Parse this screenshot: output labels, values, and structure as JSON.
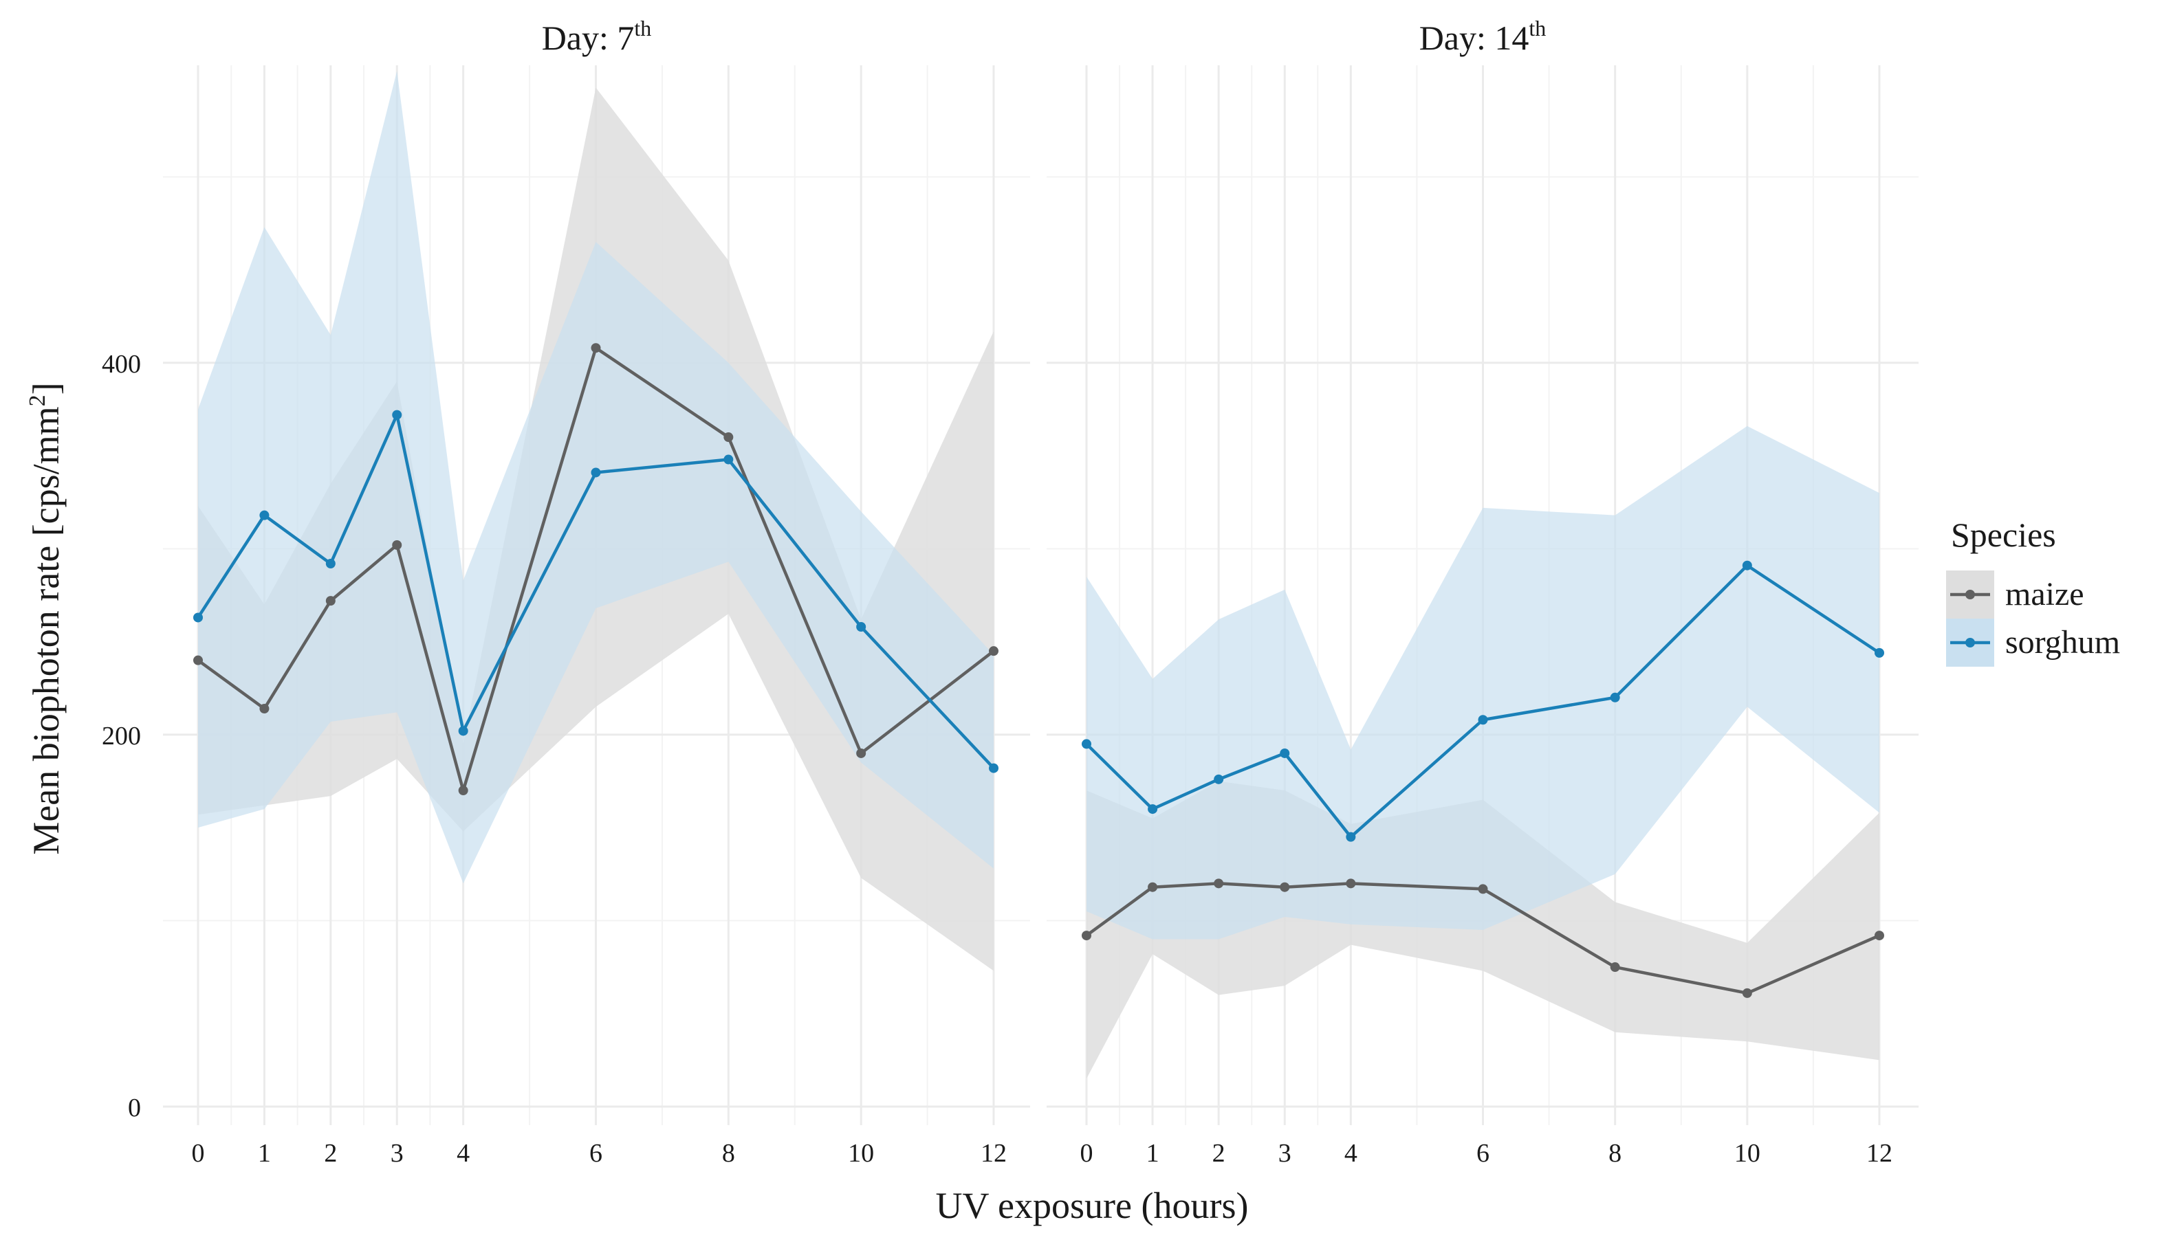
{
  "chart_data": {
    "type": "line",
    "ylabel": "Mean biophoton rate [cps/mm",
    "ylabel_sup": "2",
    "ylabel_end": "]",
    "xlabel": "UV exposure (hours)",
    "ylim": [
      -10,
      560
    ],
    "y_ticks": [
      0,
      200,
      400
    ],
    "y_tick_labels": [
      "0",
      "200",
      "400"
    ],
    "legend": {
      "title": "Species",
      "position": "right",
      "entries": [
        {
          "name": "maize",
          "color": "#606060",
          "band": "#dedede"
        },
        {
          "name": "sorghum",
          "color": "#1a80b8",
          "band": "#c9e0f0"
        }
      ]
    },
    "panels": [
      {
        "title_main": "Day: 7",
        "title_sup": "th",
        "x": [
          0,
          1,
          2,
          3,
          4,
          6,
          8,
          10,
          12
        ],
        "x_tick_labels": [
          "0",
          "1",
          "2",
          "3",
          "4",
          "6",
          "8",
          "10",
          "12"
        ],
        "series": [
          {
            "name": "maize",
            "values": [
              240,
              214,
              272,
              302,
              170,
              408,
              360,
              190,
              245
            ],
            "lower": [
              157,
              162,
              167,
              187,
              148,
              215,
              265,
              123,
              73
            ],
            "upper": [
              323,
              270,
              335,
              390,
              195,
              548,
              455,
              262,
              417
            ]
          },
          {
            "name": "sorghum",
            "values": [
              263,
              318,
              292,
              372,
              202,
              341,
              348,
              258,
              182
            ],
            "lower": [
              150,
              160,
              207,
              212,
              120,
              268,
              293,
              185,
              128
            ],
            "upper": [
              375,
              473,
              415,
              557,
              283,
              465,
              400,
              320,
              243
            ]
          }
        ]
      },
      {
        "title_main": "Day: 14",
        "title_sup": "th",
        "x": [
          0,
          1,
          2,
          3,
          4,
          6,
          8,
          10,
          12
        ],
        "x_tick_labels": [
          "0",
          "1",
          "2",
          "3",
          "4",
          "6",
          "8",
          "10",
          "12"
        ],
        "series": [
          {
            "name": "maize",
            "values": [
              92,
              118,
              120,
              118,
              120,
              117,
              75,
              61,
              92
            ],
            "lower": [
              15,
              82,
              60,
              65,
              87,
              73,
              40,
              35,
              25
            ],
            "upper": [
              170,
              155,
              175,
              170,
              152,
              165,
              110,
              88,
              158
            ]
          },
          {
            "name": "sorghum",
            "values": [
              195,
              160,
              176,
              190,
              145,
              208,
              220,
              291,
              244
            ],
            "lower": [
              105,
              90,
              90,
              102,
              98,
              95,
              125,
              215,
              158
            ],
            "upper": [
              285,
              230,
              262,
              278,
              192,
              322,
              318,
              366,
              330
            ]
          }
        ]
      }
    ]
  }
}
